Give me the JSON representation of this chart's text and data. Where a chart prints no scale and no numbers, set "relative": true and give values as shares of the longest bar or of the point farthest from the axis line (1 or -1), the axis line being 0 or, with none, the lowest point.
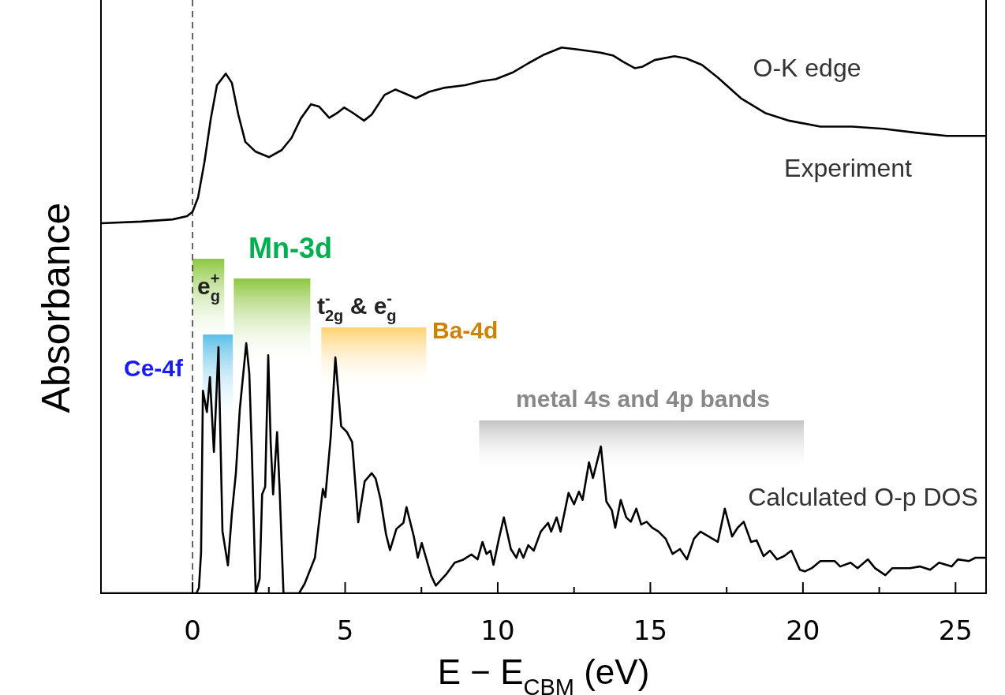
{
  "chart_data": {
    "type": "line",
    "relative": true,
    "xlabel": "E − E$_{CBM}$ (eV)",
    "ylabel": "Absorbance",
    "xlim": [
      -3,
      26
    ],
    "xticks": [
      0,
      {
        "value": 2.5,
        "label": null
      },
      5,
      {
        "value": 7.5,
        "label": null
      },
      10,
      {
        "value": 12.5,
        "label": null
      },
      15,
      {
        "value": 17.5,
        "label": null
      },
      20,
      {
        "value": 22.5,
        "label": null
      },
      25
    ],
    "grid": false,
    "legend": false,
    "marker": "none",
    "line_style": "solid",
    "series": [
      {
        "name": "Experiment",
        "color": "#000000",
        "x": [
          -3,
          -1.68,
          -0.65,
          -0.18,
          0,
          0.18,
          0.39,
          0.6,
          0.8,
          1.09,
          1.29,
          1.5,
          1.73,
          2.07,
          2.51,
          2.92,
          3.24,
          3.55,
          3.88,
          4.14,
          4.48,
          4.74,
          4.97,
          5.23,
          5.62,
          5.87,
          6.29,
          6.65,
          6.99,
          7.32,
          7.76,
          8.23,
          8.93,
          9.45,
          9.94,
          10.48,
          11,
          11.52,
          12.09,
          12.68,
          13.33,
          13.79,
          14.1,
          14.49,
          14.75,
          15.14,
          15.79,
          16.17,
          16.69,
          17.21,
          17.99,
          18.76,
          19.54,
          20.57,
          21.61,
          22.64,
          23.68,
          24.71,
          26
        ],
        "values": [
          0.678,
          0.681,
          0.685,
          0.691,
          0.699,
          0.725,
          0.79,
          0.87,
          0.931,
          0.952,
          0.935,
          0.877,
          0.827,
          0.809,
          0.799,
          0.812,
          0.834,
          0.87,
          0.896,
          0.892,
          0.871,
          0.88,
          0.89,
          0.881,
          0.866,
          0.877,
          0.913,
          0.923,
          0.915,
          0.907,
          0.919,
          0.926,
          0.931,
          0.938,
          0.942,
          0.954,
          0.971,
          0.987,
          1,
          0.996,
          0.991,
          0.985,
          0.974,
          0.962,
          0.965,
          0.977,
          0.984,
          0.98,
          0.968,
          0.945,
          0.906,
          0.88,
          0.866,
          0.855,
          0.855,
          0.851,
          0.844,
          0.838,
          0.838
        ]
      },
      {
        "name": "Calculated O-p DOS",
        "color": "#000000",
        "x": [
          -3,
          0.13,
          0.21,
          0.28,
          0.34,
          0.47,
          0.57,
          0.7,
          0.85,
          0.98,
          1.16,
          1.29,
          1.42,
          1.55,
          1.76,
          1.86,
          1.94,
          2.07,
          2.2,
          2.28,
          2.38,
          2.48,
          2.56,
          2.64,
          2.77,
          2.85,
          2.98,
          3.49,
          3.67,
          4.01,
          4.27,
          4.35,
          4.53,
          4.68,
          4.87,
          5.05,
          5.23,
          5.43,
          5.64,
          5.87,
          6,
          6.16,
          6.34,
          6.47,
          6.68,
          6.91,
          7.01,
          7.25,
          7.38,
          7.51,
          7.82,
          7.97,
          8.33,
          8.59,
          8.85,
          9.14,
          9.34,
          9.5,
          9.63,
          9.76,
          9.86,
          10.04,
          10.2,
          10.43,
          10.61,
          10.71,
          10.84,
          11,
          11.18,
          11.41,
          11.65,
          11.75,
          11.93,
          12.06,
          12.32,
          12.5,
          12.66,
          12.78,
          12.99,
          13.12,
          13.25,
          13.38,
          13.56,
          13.74,
          13.85,
          14.03,
          14.21,
          14.36,
          14.54,
          14.7,
          14.88,
          15.06,
          15.27,
          15.5,
          15.73,
          15.97,
          16.2,
          16.43,
          16.64,
          17.21,
          17.44,
          17.68,
          17.86,
          18.06,
          18.3,
          18.48,
          18.71,
          18.92,
          19.15,
          19.38,
          19.62,
          19.9,
          20.06,
          20.29,
          20.57,
          21.04,
          21.22,
          21.56,
          21.79,
          22.13,
          22.36,
          22.7,
          22.93,
          23.5,
          23.83,
          24.17,
          24.46,
          24.87,
          25.08,
          25.44,
          25.65,
          26
        ],
        "values": [
          0,
          0,
          0.01,
          0.075,
          0.371,
          0.332,
          0.396,
          0.259,
          0.451,
          0.114,
          0.051,
          0.147,
          0.22,
          0.338,
          0.458,
          0.403,
          0.267,
          0,
          0.027,
          0.181,
          0.195,
          0.436,
          0.277,
          0.181,
          0.295,
          0.195,
          0,
          0,
          0.017,
          0.065,
          0.191,
          0.176,
          0.288,
          0.432,
          0.306,
          0.296,
          0.277,
          0.13,
          0.205,
          0.22,
          0.21,
          0.172,
          0.108,
          0.079,
          0.118,
          0.129,
          0.158,
          0.104,
          0.065,
          0.092,
          0.032,
          0.014,
          0.036,
          0.056,
          0.061,
          0.071,
          0.062,
          0.094,
          0.072,
          0.078,
          0.052,
          0.1,
          0.139,
          0.081,
          0.065,
          0.081,
          0.065,
          0.088,
          0.078,
          0.113,
          0.129,
          0.113,
          0.139,
          0.113,
          0.184,
          0.163,
          0.186,
          0.171,
          0.24,
          0.211,
          0.24,
          0.269,
          0.168,
          0.152,
          0.12,
          0.171,
          0.139,
          0.131,
          0.155,
          0.126,
          0.131,
          0.12,
          0.113,
          0.1,
          0.072,
          0.081,
          0.062,
          0.1,
          0.113,
          0.094,
          0.155,
          0.104,
          0.12,
          0.131,
          0.094,
          0.097,
          0.068,
          0.078,
          0.062,
          0.068,
          0.078,
          0.043,
          0.04,
          0.046,
          0.059,
          0.059,
          0.049,
          0.056,
          0.046,
          0.062,
          0.046,
          0.033,
          0.046,
          0.046,
          0.049,
          0.043,
          0.056,
          0.049,
          0.062,
          0.059,
          0.065,
          0.065
        ]
      }
    ],
    "bands": [
      {
        "axis": "x",
        "from": 0,
        "to": 1.04,
        "label": "e$_{g}$$^{+}$",
        "color": "#8dc63f"
      },
      {
        "axis": "x",
        "from": 0.34,
        "to": 1.32,
        "label": "Ce-4f",
        "color": "#5bc0e8"
      },
      {
        "axis": "x",
        "from": 1.35,
        "to": 3.86,
        "label": "t$_{2g}$$^{-}$ & e$_{g}$$^{-}$",
        "color": "#8dc63f"
      },
      {
        "axis": "x",
        "from": 4.22,
        "to": 7.66,
        "label": "Ba-4d",
        "color": "#ffd270"
      },
      {
        "axis": "x",
        "from": 9.39,
        "to": 20.03,
        "label": "metal 4s and 4p bands",
        "color": "#c4c4c4"
      }
    ],
    "ref_lines": [
      {
        "axis": "x",
        "value": 0,
        "line_style": "dashed",
        "color": "#000000"
      }
    ],
    "annotations": [
      "O-K edge",
      "Mn-3d"
    ]
  }
}
